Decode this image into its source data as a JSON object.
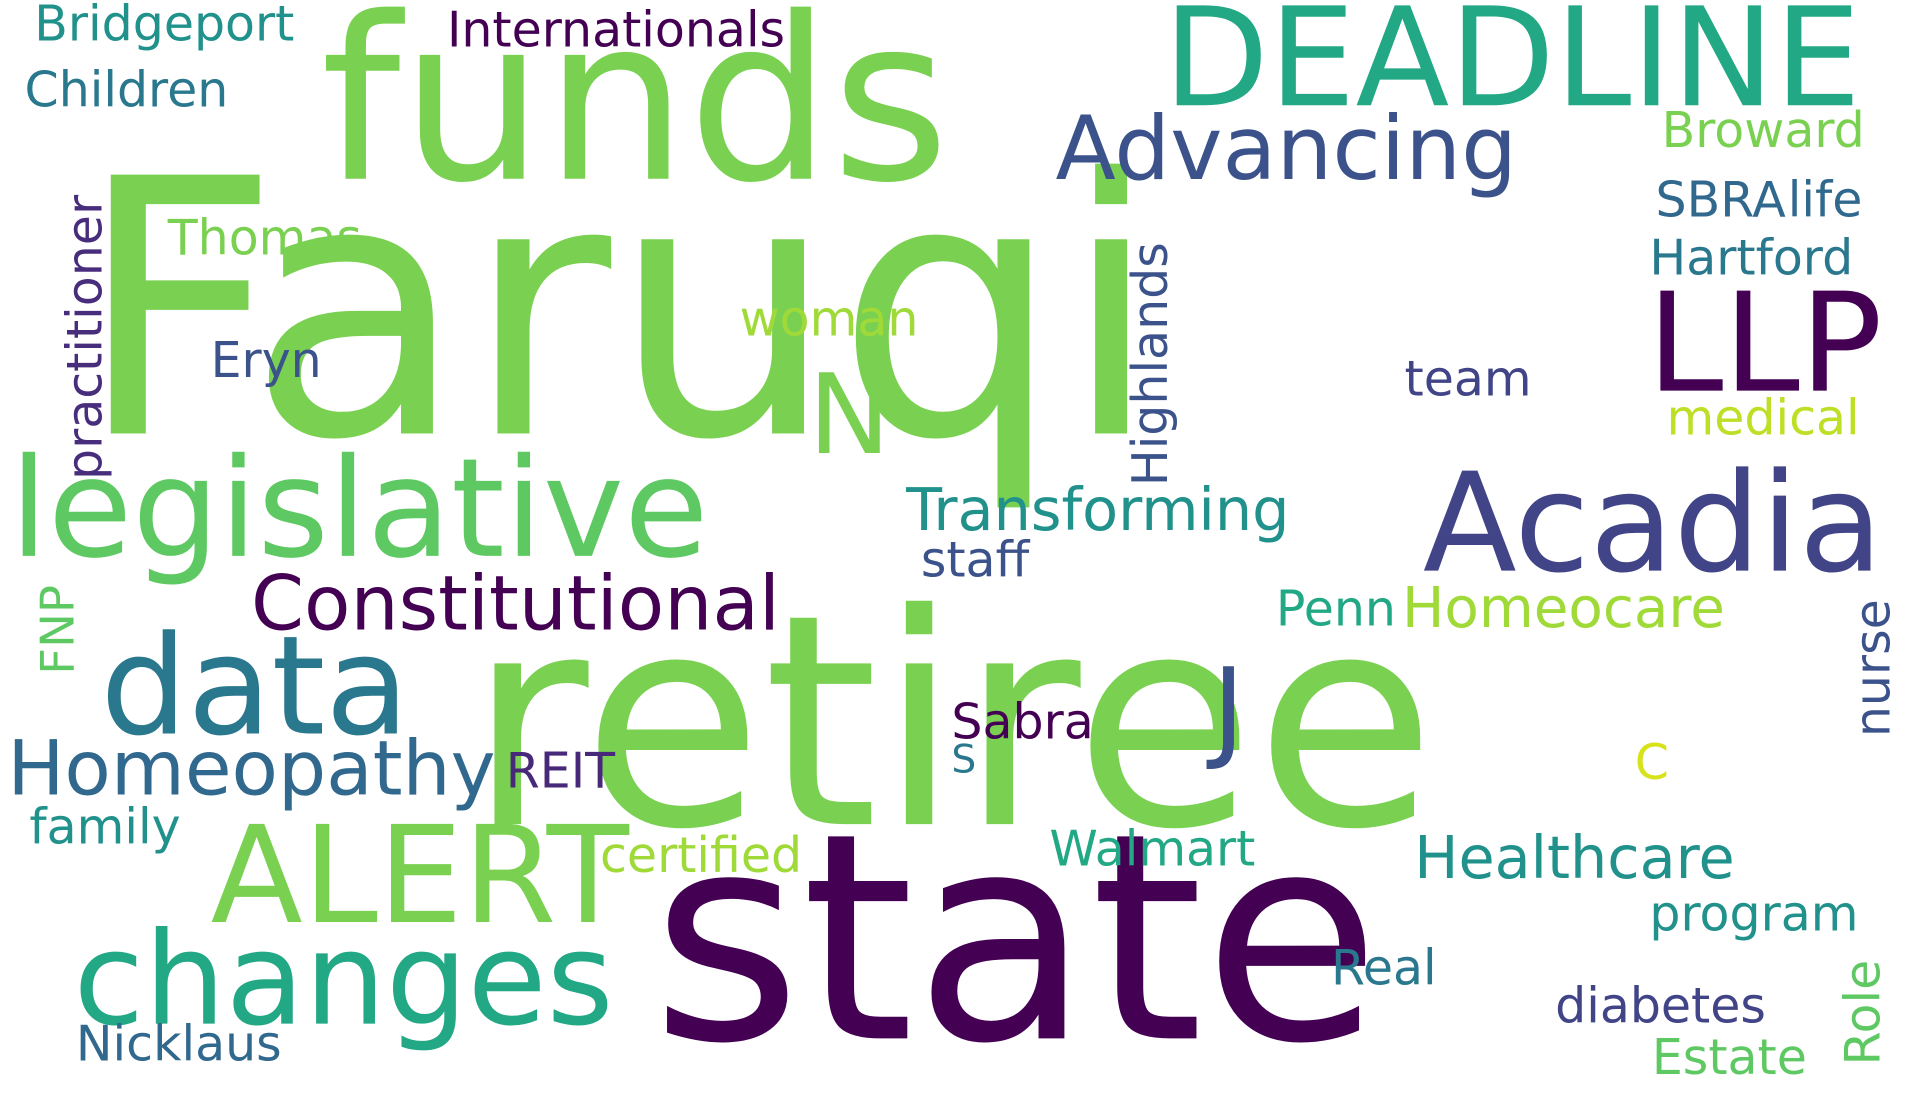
{
  "words": [
    {
      "text": "Faruqi",
      "color": "#7ad151",
      "vertical": false
    },
    {
      "text": "retiree",
      "color": "#7ad151",
      "vertical": false
    },
    {
      "text": "state",
      "color": "#440154",
      "vertical": false
    },
    {
      "text": "funds",
      "color": "#7ad151",
      "vertical": false
    },
    {
      "text": "DEADLINE",
      "color": "#22a884",
      "vertical": false
    },
    {
      "text": "legislative",
      "color": "#5ec962",
      "vertical": false
    },
    {
      "text": "Acadia",
      "color": "#414487",
      "vertical": false
    },
    {
      "text": "data",
      "color": "#2a788e",
      "vertical": false
    },
    {
      "text": "changes",
      "color": "#22a884",
      "vertical": false
    },
    {
      "text": "ALERT",
      "color": "#7ad151",
      "vertical": false
    },
    {
      "text": "LLP",
      "color": "#440154",
      "vertical": false
    },
    {
      "text": "Advancing",
      "color": "#3b528b",
      "vertical": false
    },
    {
      "text": "Constitutional",
      "color": "#440154",
      "vertical": false
    },
    {
      "text": "Homeopathy",
      "color": "#31688e",
      "vertical": false
    },
    {
      "text": "N",
      "color": "#7ad151",
      "vertical": false
    },
    {
      "text": "J",
      "color": "#3b528b",
      "vertical": false
    },
    {
      "text": "Transforming",
      "color": "#21918c",
      "vertical": false
    },
    {
      "text": "Healthcare",
      "color": "#21918c",
      "vertical": false
    },
    {
      "text": "Homeocare",
      "color": "#a0da39",
      "vertical": false
    },
    {
      "text": "Internationals",
      "color": "#440154",
      "vertical": false
    },
    {
      "text": "Bridgeport",
      "color": "#21918c",
      "vertical": false
    },
    {
      "text": "Children",
      "color": "#2a788e",
      "vertical": false
    },
    {
      "text": "practitioner",
      "color": "#472d7b",
      "vertical": true
    },
    {
      "text": "Thomas",
      "color": "#7ad151",
      "vertical": false
    },
    {
      "text": "Eryn",
      "color": "#3b528b",
      "vertical": false
    },
    {
      "text": "woman",
      "color": "#a0da39",
      "vertical": false
    },
    {
      "text": "Highlands",
      "color": "#3b528b",
      "vertical": true
    },
    {
      "text": "Broward",
      "color": "#7ad151",
      "vertical": false
    },
    {
      "text": "SBRA",
      "color": "#31688e",
      "vertical": false
    },
    {
      "text": "life",
      "color": "#31688e",
      "vertical": false
    },
    {
      "text": "Hartford",
      "color": "#2a788e",
      "vertical": false
    },
    {
      "text": "team",
      "color": "#414487",
      "vertical": false
    },
    {
      "text": "medical",
      "color": "#bddf26",
      "vertical": false
    },
    {
      "text": "staff",
      "color": "#3b528b",
      "vertical": false
    },
    {
      "text": "Penn",
      "color": "#22a884",
      "vertical": false
    },
    {
      "text": "nurse",
      "color": "#3b528b",
      "vertical": true
    },
    {
      "text": "FNP",
      "color": "#5ec962",
      "vertical": true
    },
    {
      "text": "Sabra",
      "color": "#440154",
      "vertical": false
    },
    {
      "text": "S",
      "color": "#2a788e",
      "vertical": false
    },
    {
      "text": "REIT",
      "color": "#482878",
      "vertical": false
    },
    {
      "text": "C",
      "color": "#d8e219",
      "vertical": false
    },
    {
      "text": "family",
      "color": "#21918c",
      "vertical": false
    },
    {
      "text": "certified",
      "color": "#a0da39",
      "vertical": false
    },
    {
      "text": "Walmart",
      "color": "#22a884",
      "vertical": false
    },
    {
      "text": "program",
      "color": "#21918c",
      "vertical": false
    },
    {
      "text": "Real",
      "color": "#2a788e",
      "vertical": false
    },
    {
      "text": "Role",
      "color": "#5ec962",
      "vertical": true
    },
    {
      "text": "diabetes",
      "color": "#414487",
      "vertical": false
    },
    {
      "text": "Nicklaus",
      "color": "#31688e",
      "vertical": false
    },
    {
      "text": "Estate",
      "color": "#5ec962",
      "vertical": false
    }
  ]
}
